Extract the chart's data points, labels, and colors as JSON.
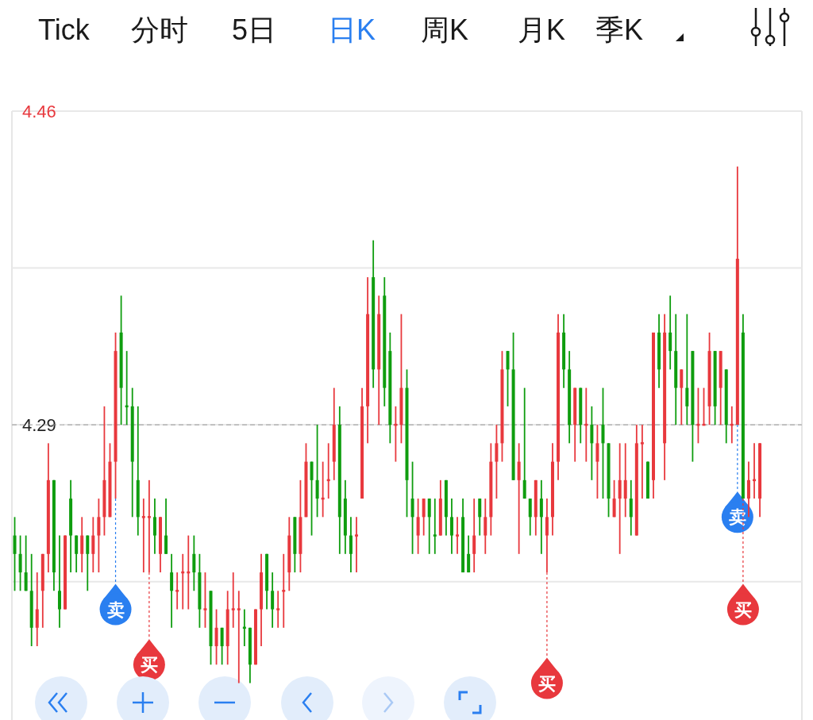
{
  "chart_data": {
    "type": "candlestick",
    "annotations": [
      "Tick",
      "分时",
      "5日",
      "日K",
      "周K",
      "月K",
      "季K"
    ],
    "categories": [
      null,
      null,
      null,
      null,
      null,
      null,
      null,
      null,
      null,
      null,
      null,
      null,
      null,
      null,
      null,
      null,
      null,
      null,
      null,
      null,
      null,
      null,
      null,
      null,
      null,
      null,
      null,
      null,
      null,
      null,
      null,
      null,
      null,
      null,
      null,
      null,
      null,
      null,
      null,
      null,
      null,
      null,
      null,
      null,
      null,
      null,
      null,
      null,
      null,
      null,
      null,
      null,
      null,
      null,
      null,
      null,
      null,
      null,
      null,
      null,
      null,
      null,
      null,
      null,
      null,
      null,
      null,
      null,
      null,
      null,
      null,
      null,
      null,
      null,
      null,
      null,
      null,
      null,
      null,
      null,
      null,
      null,
      null,
      null,
      null,
      null,
      null,
      null,
      null,
      null,
      null,
      null,
      null,
      null,
      null,
      null,
      null,
      null,
      null,
      null,
      null,
      null,
      null,
      null,
      null,
      null,
      null,
      null,
      null,
      null,
      null,
      null,
      null,
      null,
      null,
      null,
      null,
      null,
      null,
      null,
      null,
      null,
      null,
      null,
      null,
      null,
      null,
      null,
      null,
      null,
      null,
      null,
      null,
      null,
      null,
      null,
      null,
      null,
      null,
      null,
      null
    ],
    "ohlc": [
      [
        4.23,
        4.24,
        4.2,
        4.22
      ],
      [
        4.22,
        4.23,
        4.2,
        4.21
      ],
      [
        4.21,
        4.23,
        4.2,
        4.2
      ],
      [
        4.2,
        4.22,
        4.17,
        4.18
      ],
      [
        4.18,
        4.21,
        4.17,
        4.19
      ],
      [
        4.2,
        4.22,
        4.18,
        4.22
      ],
      [
        4.22,
        4.28,
        4.21,
        4.26
      ],
      [
        4.26,
        4.26,
        4.2,
        4.21
      ],
      [
        4.2,
        4.23,
        4.18,
        4.19
      ],
      [
        4.19,
        4.23,
        4.19,
        4.23
      ],
      [
        4.25,
        4.26,
        4.21,
        4.23
      ],
      [
        4.23,
        4.23,
        4.21,
        4.22
      ],
      [
        4.22,
        4.24,
        4.21,
        4.23
      ],
      [
        4.23,
        4.23,
        4.2,
        4.22
      ],
      [
        4.22,
        4.24,
        4.21,
        4.23
      ],
      [
        4.23,
        4.25,
        4.21,
        4.24
      ],
      [
        4.24,
        4.3,
        4.23,
        4.26
      ],
      [
        4.24,
        4.28,
        4.24,
        4.27
      ],
      [
        4.27,
        4.34,
        4.25,
        4.33
      ],
      [
        4.34,
        4.36,
        4.29,
        4.31
      ],
      [
        4.3,
        4.33,
        4.29,
        4.3
      ],
      [
        4.3,
        4.31,
        4.24,
        4.27
      ],
      [
        4.26,
        4.3,
        4.23,
        4.24
      ],
      [
        4.24,
        4.25,
        4.21,
        4.24
      ],
      [
        4.24,
        4.26,
        4.21,
        4.24
      ],
      [
        4.24,
        4.25,
        4.22,
        4.23
      ],
      [
        4.22,
        4.24,
        4.21,
        4.24
      ],
      [
        4.23,
        4.25,
        4.22,
        4.22
      ],
      [
        4.21,
        4.22,
        4.18,
        4.2
      ],
      [
        4.2,
        4.21,
        4.19,
        4.2
      ],
      [
        4.21,
        4.22,
        4.19,
        4.21
      ],
      [
        4.21,
        4.23,
        4.19,
        4.21
      ],
      [
        4.22,
        4.23,
        4.2,
        4.21
      ],
      [
        4.21,
        4.22,
        4.18,
        4.19
      ],
      [
        4.19,
        4.21,
        4.18,
        4.19
      ],
      [
        4.2,
        4.2,
        4.16,
        4.17
      ],
      [
        4.17,
        4.19,
        4.16,
        4.18
      ],
      [
        4.18,
        4.18,
        4.16,
        4.17
      ],
      [
        4.17,
        4.2,
        4.16,
        4.19
      ],
      [
        4.19,
        4.21,
        4.18,
        4.19
      ],
      [
        4.19,
        4.2,
        4.15,
        4.19
      ],
      [
        4.18,
        4.19,
        4.17,
        4.18
      ],
      [
        4.18,
        4.18,
        4.15,
        4.16
      ],
      [
        4.16,
        4.19,
        4.16,
        4.19
      ],
      [
        4.19,
        4.22,
        4.17,
        4.21
      ],
      [
        4.22,
        4.22,
        4.19,
        4.2
      ],
      [
        4.2,
        4.21,
        4.18,
        4.19
      ],
      [
        4.19,
        4.2,
        4.18,
        4.19
      ],
      [
        4.2,
        4.22,
        4.18,
        4.2
      ],
      [
        4.21,
        4.24,
        4.2,
        4.23
      ],
      [
        4.24,
        4.24,
        4.21,
        4.22
      ],
      [
        4.22,
        4.26,
        4.21,
        4.24
      ],
      [
        4.24,
        4.28,
        4.24,
        4.27
      ],
      [
        4.27,
        4.27,
        4.23,
        4.26
      ],
      [
        4.26,
        4.29,
        4.24,
        4.25
      ],
      [
        4.25,
        4.27,
        4.24,
        4.25
      ],
      [
        4.26,
        4.28,
        4.25,
        4.26
      ],
      [
        4.27,
        4.31,
        4.26,
        4.29
      ],
      [
        4.29,
        4.3,
        4.22,
        4.24
      ],
      [
        4.25,
        4.26,
        4.22,
        4.23
      ],
      [
        4.23,
        4.24,
        4.21,
        4.22
      ],
      [
        4.23,
        4.24,
        4.21,
        4.23
      ],
      [
        4.25,
        4.31,
        4.25,
        4.3
      ],
      [
        4.3,
        4.37,
        4.28,
        4.35
      ],
      [
        4.37,
        4.39,
        4.31,
        4.32
      ],
      [
        4.32,
        4.36,
        4.29,
        4.35
      ],
      [
        4.36,
        4.37,
        4.3,
        4.31
      ],
      [
        4.33,
        4.34,
        4.28,
        4.29
      ],
      [
        4.29,
        4.3,
        4.27,
        4.29
      ],
      [
        4.29,
        4.35,
        4.28,
        4.31
      ],
      [
        4.31,
        4.32,
        4.24,
        4.26
      ],
      [
        4.25,
        4.27,
        4.22,
        4.24
      ],
      [
        4.23,
        4.25,
        4.22,
        4.24
      ],
      [
        4.24,
        4.25,
        4.23,
        4.25
      ],
      [
        4.25,
        4.25,
        4.22,
        4.24
      ],
      [
        4.23,
        4.25,
        4.22,
        4.23
      ],
      [
        4.23,
        4.26,
        4.23,
        4.25
      ],
      [
        4.26,
        4.26,
        4.23,
        4.24
      ],
      [
        4.24,
        4.25,
        4.22,
        4.23
      ],
      [
        4.23,
        4.24,
        4.22,
        4.23
      ],
      [
        4.24,
        4.25,
        4.21,
        4.21
      ],
      [
        4.22,
        4.23,
        4.21,
        4.21
      ],
      [
        4.22,
        4.25,
        4.21,
        4.23
      ],
      [
        4.25,
        4.25,
        4.23,
        4.24
      ],
      [
        4.23,
        4.25,
        4.22,
        4.24
      ],
      [
        4.24,
        4.28,
        4.23,
        4.27
      ],
      [
        4.27,
        4.29,
        4.25,
        4.28
      ],
      [
        4.28,
        4.33,
        4.27,
        4.32
      ],
      [
        4.33,
        4.33,
        4.3,
        4.32
      ],
      [
        4.32,
        4.34,
        4.26,
        4.26
      ],
      [
        4.26,
        4.28,
        4.22,
        4.27
      ],
      [
        4.26,
        4.31,
        4.25,
        4.25
      ],
      [
        4.25,
        4.25,
        4.23,
        4.24
      ],
      [
        4.24,
        4.26,
        4.23,
        4.26
      ],
      [
        4.25,
        4.26,
        4.22,
        4.24
      ],
      [
        4.23,
        4.25,
        4.21,
        4.24
      ],
      [
        4.24,
        4.28,
        4.23,
        4.27
      ],
      [
        4.27,
        4.35,
        4.26,
        4.34
      ],
      [
        4.34,
        4.35,
        4.31,
        4.32
      ],
      [
        4.32,
        4.33,
        4.28,
        4.29
      ],
      [
        4.29,
        4.31,
        4.27,
        4.31
      ],
      [
        4.31,
        4.31,
        4.28,
        4.29
      ],
      [
        4.29,
        4.31,
        4.27,
        4.29
      ],
      [
        4.29,
        4.3,
        4.26,
        4.28
      ],
      [
        4.27,
        4.29,
        4.25,
        4.28
      ],
      [
        4.29,
        4.31,
        4.25,
        4.28
      ],
      [
        4.28,
        4.28,
        4.24,
        4.25
      ],
      [
        4.24,
        4.26,
        4.24,
        4.25
      ],
      [
        4.25,
        4.28,
        4.22,
        4.26
      ],
      [
        4.25,
        4.28,
        4.24,
        4.26
      ],
      [
        4.25,
        4.26,
        4.23,
        4.24
      ],
      [
        4.23,
        4.29,
        4.23,
        4.28
      ],
      [
        4.28,
        4.29,
        4.25,
        4.28
      ],
      [
        4.27,
        4.27,
        4.25,
        4.25
      ],
      [
        4.26,
        4.34,
        4.25,
        4.34
      ],
      [
        4.34,
        4.35,
        4.31,
        4.32
      ],
      [
        4.28,
        4.35,
        4.26,
        4.34
      ],
      [
        4.34,
        4.36,
        4.32,
        4.33
      ],
      [
        4.33,
        4.35,
        4.29,
        4.31
      ],
      [
        4.31,
        4.32,
        4.29,
        4.32
      ],
      [
        4.31,
        4.35,
        4.29,
        4.3
      ],
      [
        4.33,
        4.33,
        4.27,
        4.29
      ],
      [
        4.29,
        4.31,
        4.28,
        4.29
      ],
      [
        4.29,
        4.31,
        4.29,
        4.29
      ],
      [
        4.3,
        4.34,
        4.29,
        4.33
      ],
      [
        4.33,
        4.33,
        4.29,
        4.3
      ],
      [
        4.31,
        4.33,
        4.29,
        4.33
      ],
      [
        4.32,
        4.32,
        4.28,
        4.29
      ],
      [
        4.29,
        4.3,
        4.28,
        4.29
      ],
      [
        4.29,
        4.43,
        4.29,
        4.38
      ],
      [
        4.34,
        4.35,
        4.25,
        4.25
      ],
      [
        4.25,
        4.27,
        4.24,
        4.26
      ],
      [
        4.26,
        4.28,
        4.25,
        4.26
      ],
      [
        4.25,
        4.28,
        4.24,
        4.28
      ],
      null,
      null,
      null,
      null,
      null,
      null,
      null
    ],
    "colors": [
      "#0f9d0f",
      "#0f9d0f",
      "#0f9d0f",
      "#0f9d0f",
      "#e8383d",
      "#e8383d",
      "#e8383d",
      "#0f9d0f",
      "#0f9d0f",
      "#e8383d",
      "#0f9d0f",
      "#0f9d0f",
      "#e8383d",
      "#0f9d0f",
      "#e8383d",
      "#e8383d",
      "#e8383d",
      "#e8383d",
      "#e8383d",
      "#0f9d0f",
      "#0f9d0f",
      "#0f9d0f",
      "#0f9d0f",
      "#e8383d",
      "#e8383d",
      "#0f9d0f",
      "#e8383d",
      "#0f9d0f",
      "#0f9d0f",
      "#e8383d",
      "#e8383d",
      "#e8383d",
      "#0f9d0f",
      "#0f9d0f",
      "#e8383d",
      "#0f9d0f",
      "#e8383d",
      "#0f9d0f",
      "#e8383d",
      "#e8383d",
      "#e8383d",
      "#0f9d0f",
      "#0f9d0f",
      "#e8383d",
      "#e8383d",
      "#0f9d0f",
      "#0f9d0f",
      "#e8383d",
      "#e8383d",
      "#e8383d",
      "#0f9d0f",
      "#e8383d",
      "#e8383d",
      "#0f9d0f",
      "#0f9d0f",
      "#e8383d",
      "#e8383d",
      "#e8383d",
      "#0f9d0f",
      "#0f9d0f",
      "#0f9d0f",
      "#e8383d",
      "#e8383d",
      "#e8383d",
      "#0f9d0f",
      "#e8383d",
      "#0f9d0f",
      "#0f9d0f",
      "#e8383d",
      "#e8383d",
      "#0f9d0f",
      "#0f9d0f",
      "#e8383d",
      "#e8383d",
      "#0f9d0f",
      "#0f9d0f",
      "#e8383d",
      "#0f9d0f",
      "#0f9d0f",
      "#e8383d",
      "#0f9d0f",
      "#0f9d0f",
      "#e8383d",
      "#0f9d0f",
      "#e8383d",
      "#e8383d",
      "#e8383d",
      "#e8383d",
      "#0f9d0f",
      "#0f9d0f",
      "#e8383d",
      "#0f9d0f",
      "#0f9d0f",
      "#e8383d",
      "#0f9d0f",
      "#e8383d",
      "#e8383d",
      "#e8383d",
      "#0f9d0f",
      "#0f9d0f",
      "#e8383d",
      "#0f9d0f",
      "#e8383d",
      "#0f9d0f",
      "#e8383d",
      "#0f9d0f",
      "#0f9d0f",
      "#e8383d",
      "#e8383d",
      "#e8383d",
      "#0f9d0f",
      "#e8383d",
      "#e8383d",
      "#0f9d0f",
      "#e8383d",
      "#0f9d0f",
      "#e8383d",
      "#0f9d0f",
      "#0f9d0f",
      "#e8383d",
      "#0f9d0f",
      "#0f9d0f",
      "#e8383d",
      "#e8383d",
      "#e8383d",
      "#0f9d0f",
      "#e8383d",
      "#0f9d0f",
      "#e8383d",
      "#e8383d",
      "#0f9d0f",
      "#e8383d",
      "#e8383d",
      "#e8383d",
      null,
      null,
      null,
      null,
      null,
      null,
      null
    ],
    "series": [
      {
        "type": "scatter",
        "color": "#2a7ff0",
        "marker": "circle",
        "values": [
          null,
          null,
          null,
          null,
          null,
          null,
          null,
          null,
          null,
          null,
          null,
          null,
          null,
          null,
          null,
          null,
          null,
          null,
          4.19,
          null,
          null,
          null,
          null,
          null,
          null,
          null,
          null,
          null,
          null,
          null,
          null,
          null,
          null,
          null,
          null,
          null,
          null,
          null,
          null,
          null,
          null,
          null,
          null,
          null,
          null,
          null,
          null,
          null,
          null,
          null,
          null,
          null,
          null,
          null,
          null,
          null,
          null,
          null,
          null,
          null,
          null,
          null,
          null,
          null,
          null,
          null,
          null,
          null,
          null,
          null,
          null,
          null,
          null,
          null,
          null,
          null,
          null,
          null,
          null,
          null,
          null,
          null,
          null,
          null,
          null,
          null,
          null,
          null,
          null,
          null,
          null,
          null,
          null,
          null,
          null,
          null,
          null,
          null,
          null,
          null,
          null,
          null,
          null,
          null,
          null,
          null,
          null,
          null,
          null,
          null,
          null,
          null,
          null,
          null,
          null,
          null,
          null,
          null,
          null,
          null,
          null,
          null,
          null,
          null,
          null,
          null,
          null,
          null,
          null,
          4.24,
          null,
          null,
          null,
          null,
          null,
          null,
          null,
          null,
          null,
          null,
          null
        ],
        "value_labels": [
          null,
          null,
          null,
          null,
          null,
          null,
          null,
          null,
          null,
          null,
          null,
          null,
          null,
          null,
          null,
          null,
          null,
          null,
          "卖",
          null,
          null,
          null,
          null,
          null,
          null,
          null,
          null,
          null,
          null,
          null,
          null,
          null,
          null,
          null,
          null,
          null,
          null,
          null,
          null,
          null,
          null,
          null,
          null,
          null,
          null,
          null,
          null,
          null,
          null,
          null,
          null,
          null,
          null,
          null,
          null,
          null,
          null,
          null,
          null,
          null,
          null,
          null,
          null,
          null,
          null,
          null,
          null,
          null,
          null,
          null,
          null,
          null,
          null,
          null,
          null,
          null,
          null,
          null,
          null,
          null,
          null,
          null,
          null,
          null,
          null,
          null,
          null,
          null,
          null,
          null,
          null,
          null,
          null,
          null,
          null,
          null,
          null,
          null,
          null,
          null,
          null,
          null,
          null,
          null,
          null,
          null,
          null,
          null,
          null,
          null,
          null,
          null,
          null,
          null,
          null,
          null,
          null,
          null,
          null,
          null,
          null,
          null,
          null,
          null,
          null,
          null,
          null,
          null,
          null,
          "卖",
          null,
          null,
          null,
          null,
          null,
          null,
          null,
          null,
          null,
          null,
          null
        ]
      },
      {
        "type": "scatter",
        "color": "#e8383d",
        "marker": "circle",
        "values": [
          null,
          null,
          null,
          null,
          null,
          null,
          null,
          null,
          null,
          null,
          null,
          null,
          null,
          null,
          null,
          null,
          null,
          null,
          null,
          null,
          null,
          null,
          null,
          null,
          4.16,
          null,
          null,
          null,
          null,
          null,
          null,
          null,
          null,
          null,
          null,
          null,
          null,
          null,
          null,
          null,
          null,
          null,
          null,
          null,
          null,
          null,
          null,
          null,
          null,
          null,
          null,
          null,
          null,
          null,
          null,
          null,
          null,
          null,
          null,
          null,
          null,
          null,
          null,
          null,
          null,
          null,
          null,
          null,
          null,
          null,
          null,
          null,
          null,
          null,
          null,
          null,
          null,
          null,
          null,
          null,
          null,
          null,
          null,
          null,
          null,
          null,
          null,
          null,
          null,
          null,
          null,
          null,
          null,
          null,
          null,
          4.15,
          null,
          null,
          null,
          null,
          null,
          null,
          null,
          null,
          null,
          null,
          null,
          null,
          null,
          null,
          null,
          null,
          null,
          null,
          null,
          null,
          null,
          null,
          null,
          null,
          null,
          null,
          null,
          null,
          null,
          null,
          null,
          null,
          null,
          null,
          4.19,
          null,
          null,
          null,
          null,
          null,
          null,
          null,
          null,
          null,
          null
        ],
        "value_labels": [
          null,
          null,
          null,
          null,
          null,
          null,
          null,
          null,
          null,
          null,
          null,
          null,
          null,
          null,
          null,
          null,
          null,
          null,
          null,
          null,
          null,
          null,
          null,
          null,
          "买",
          null,
          null,
          null,
          null,
          null,
          null,
          null,
          null,
          null,
          null,
          null,
          null,
          null,
          null,
          null,
          null,
          null,
          null,
          null,
          null,
          null,
          null,
          null,
          null,
          null,
          null,
          null,
          null,
          null,
          null,
          null,
          null,
          null,
          null,
          null,
          null,
          null,
          null,
          null,
          null,
          null,
          null,
          null,
          null,
          null,
          null,
          null,
          null,
          null,
          null,
          null,
          null,
          null,
          null,
          null,
          null,
          null,
          null,
          null,
          null,
          null,
          null,
          null,
          null,
          null,
          null,
          null,
          null,
          null,
          null,
          "买",
          null,
          null,
          null,
          null,
          null,
          null,
          null,
          null,
          null,
          null,
          null,
          null,
          null,
          null,
          null,
          null,
          null,
          null,
          null,
          null,
          null,
          null,
          null,
          null,
          null,
          null,
          null,
          null,
          null,
          null,
          null,
          null,
          null,
          null,
          "买",
          null,
          null,
          null,
          null,
          null,
          null,
          null,
          null,
          null,
          null
        ]
      }
    ],
    "ylim": [
      4.13,
      4.46
    ],
    "yticks": [
      {
        "value": 4.46,
        "label": "4.46"
      },
      {
        "value": 4.375,
        "label": null
      },
      {
        "value": 4.29,
        "label": "4.29"
      },
      {
        "value": 4.205,
        "label": null
      }
    ],
    "ref_lines": [
      {
        "axis": "y",
        "value": 4.29,
        "color": "#999999",
        "line_style": "dashed"
      }
    ],
    "grid": "y",
    "tick_labels": "y"
  }
}
